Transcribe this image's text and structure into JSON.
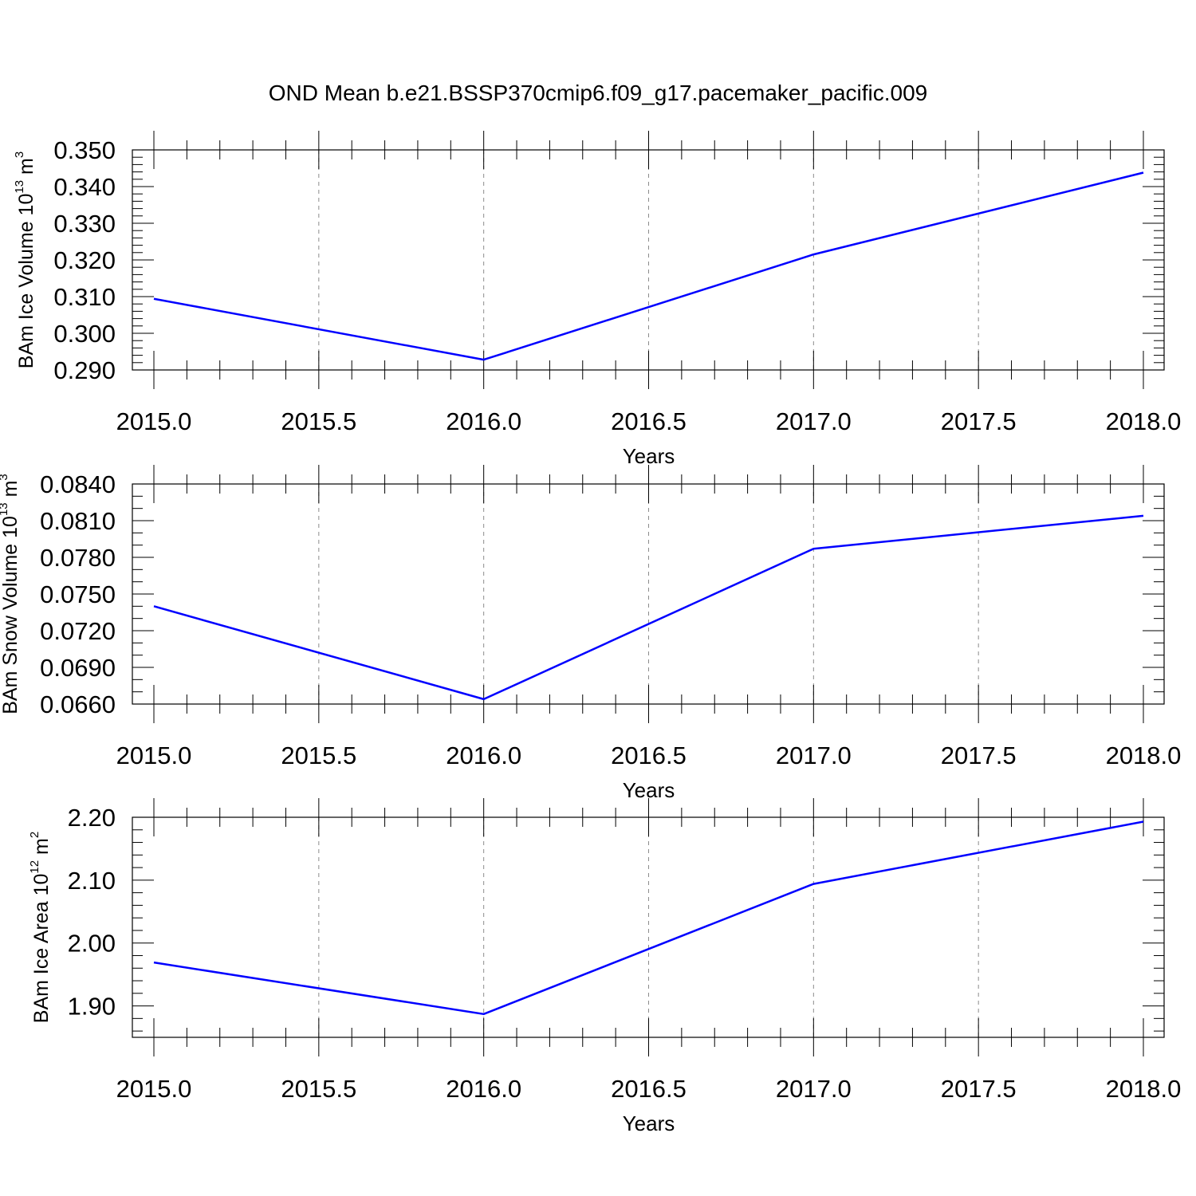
{
  "title": "OND Mean b.e21.BSSP370cmip6.f09_g17.pacemaker_pacific.009",
  "colors": {
    "series": "#0000ff",
    "grid": "#8c8c8c",
    "axes": "#000000"
  },
  "chart_data": [
    {
      "type": "line",
      "xlabel": "Years",
      "ylabel_parts": [
        "BAm Ice Volume 10",
        "13",
        " m",
        "3"
      ],
      "xlim": [
        2015.0,
        2018.0
      ],
      "ylim": [
        0.29,
        0.35
      ],
      "x_ticks": [
        "2015.0",
        "2015.5",
        "2016.0",
        "2016.5",
        "2017.0",
        "2017.5",
        "2018.0"
      ],
      "y_ticks": [
        "0.290",
        "0.300",
        "0.310",
        "0.320",
        "0.330",
        "0.340",
        "0.350"
      ],
      "grid": "vertical dashed",
      "series": [
        {
          "x": [
            2015,
            2016,
            2017,
            2018
          ],
          "y": [
            0.3094,
            0.2928,
            0.3215,
            0.3438
          ]
        }
      ]
    },
    {
      "type": "line",
      "xlabel": "Years",
      "ylabel_parts": [
        "BAm Snow Volume 10",
        "13",
        " m",
        "3"
      ],
      "xlim": [
        2015.0,
        2018.0
      ],
      "ylim": [
        0.066,
        0.084
      ],
      "x_ticks": [
        "2015.0",
        "2015.5",
        "2016.0",
        "2016.5",
        "2017.0",
        "2017.5",
        "2018.0"
      ],
      "y_ticks": [
        "0.0660",
        "0.0690",
        "0.0720",
        "0.0750",
        "0.0780",
        "0.0810",
        "0.0840"
      ],
      "grid": "vertical dashed",
      "series": [
        {
          "x": [
            2015,
            2016,
            2017,
            2018
          ],
          "y": [
            0.074,
            0.0664,
            0.0787,
            0.0814
          ]
        }
      ]
    },
    {
      "type": "line",
      "xlabel": "Years",
      "ylabel_parts": [
        "BAm Ice Area 10",
        "12",
        " m",
        "2"
      ],
      "xlim": [
        2015.0,
        2018.0
      ],
      "ylim": [
        1.85,
        2.2
      ],
      "x_ticks": [
        "2015.0",
        "2015.5",
        "2016.0",
        "2016.5",
        "2017.0",
        "2017.5",
        "2018.0"
      ],
      "y_ticks": [
        "1.90",
        "2.00",
        "2.10",
        "2.20"
      ],
      "grid": "vertical dashed",
      "series": [
        {
          "x": [
            2015,
            2016,
            2017,
            2018
          ],
          "y": [
            1.969,
            1.887,
            2.094,
            2.193
          ]
        }
      ]
    }
  ]
}
